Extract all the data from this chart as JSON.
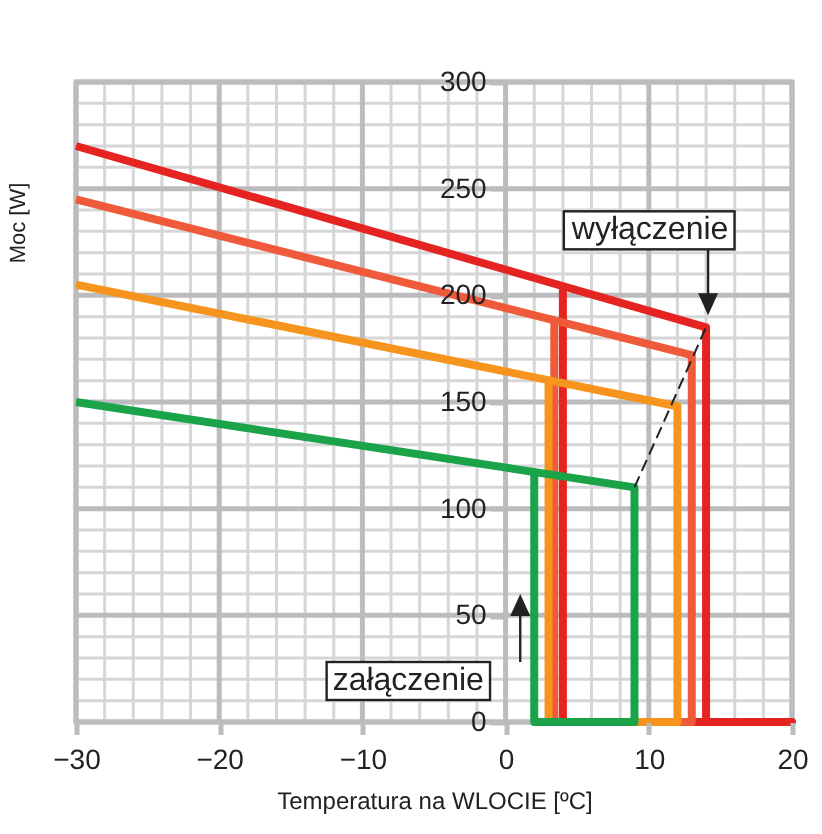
{
  "chart_data": {
    "type": "line",
    "xlabel": "Temperatura na WLOCIE  [ºC]",
    "ylabel": "Moc [W]",
    "xlim": [
      -30,
      20
    ],
    "xticks": [
      -30,
      -20,
      -10,
      0,
      10,
      20
    ],
    "ylim": [
      0,
      300
    ],
    "yticks": [
      0,
      50,
      100,
      150,
      200,
      250,
      300
    ],
    "grid": true,
    "line_style": "solid",
    "marker": "none",
    "annotations": [
      "wyłączenie",
      "załączenie"
    ],
    "series": [
      {
        "color": "#e52421",
        "x": [
          -30,
          14,
          14,
          20,
          4,
          4
        ],
        "values": [
          270,
          185,
          0,
          0,
          0,
          203
        ]
      },
      {
        "color": "#ef5a3a",
        "x": [
          -30,
          13,
          13,
          3.4,
          3.4
        ],
        "values": [
          245,
          172,
          0,
          0,
          187
        ]
      },
      {
        "color": "#f7941d",
        "x": [
          -30,
          12,
          12,
          3,
          3
        ],
        "values": [
          205,
          148,
          0,
          0,
          159
        ]
      },
      {
        "color": "#1ba34a",
        "x": [
          -30,
          9,
          9,
          2,
          2
        ],
        "values": [
          150,
          110,
          0,
          0,
          118
        ]
      }
    ]
  }
}
